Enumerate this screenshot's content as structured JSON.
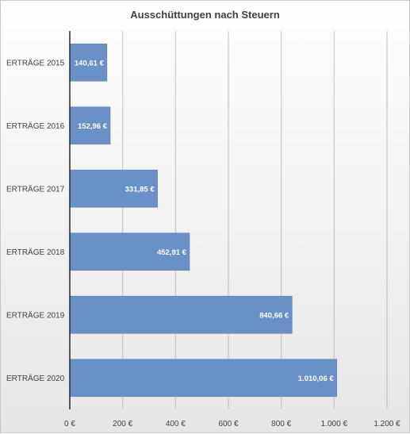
{
  "chart_data": {
    "type": "bar",
    "orientation": "horizontal",
    "title": "Ausschüttungen nach Steuern",
    "categories": [
      "ERTRÄGE 2015",
      "ERTRÄGE 2016",
      "ERTRÄGE 2017",
      "ERTRÄGE 2018",
      "ERTRÄGE 2019",
      "ERTRÄGE 2020"
    ],
    "values": [
      140.61,
      152.96,
      331.85,
      452.91,
      840.66,
      1010.06
    ],
    "data_labels": [
      "140,61 €",
      "152,96 €",
      "331,85 €",
      "452,91 €",
      "840,66 €",
      "1.010,06 €"
    ],
    "xlim": [
      0,
      1200
    ],
    "x_ticks": [
      0,
      200,
      400,
      600,
      800,
      1000,
      1200
    ],
    "x_tick_labels": [
      "0 €",
      "200 €",
      "400 €",
      "600 €",
      "800 €",
      "1.000 €",
      "1.200 €"
    ],
    "grid": true,
    "legend": "none",
    "colors": {
      "bar": "#6a91c7",
      "background": "#f1f1f1"
    }
  }
}
